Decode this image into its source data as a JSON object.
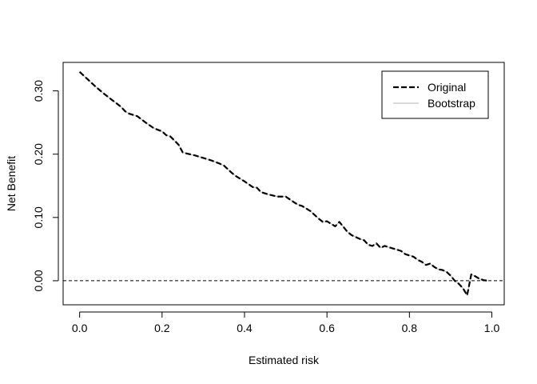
{
  "chart_data": {
    "type": "line",
    "title": "",
    "xlabel": "Estimated risk",
    "ylabel": "Net Benefit",
    "xlim": [
      -0.04,
      1.03
    ],
    "ylim": [
      -0.038,
      0.345
    ],
    "x_ticks": [
      {
        "value": 0.0,
        "label": "0.0"
      },
      {
        "value": 0.2,
        "label": "0.2"
      },
      {
        "value": 0.4,
        "label": "0.4"
      },
      {
        "value": 0.6,
        "label": "0.6"
      },
      {
        "value": 0.8,
        "label": "0.8"
      },
      {
        "value": 1.0,
        "label": "1.0"
      }
    ],
    "y_ticks": [
      {
        "value": 0.0,
        "label": "0.00"
      },
      {
        "value": 0.1,
        "label": "0.10"
      },
      {
        "value": 0.2,
        "label": "0.20"
      },
      {
        "value": 0.3,
        "label": "0.30"
      }
    ],
    "grid": false,
    "legend": {
      "position": "top-right",
      "entries": [
        {
          "label": "Original",
          "style": "dashed",
          "color": "#000000"
        },
        {
          "label": "Bootstrap",
          "style": "solid",
          "color": "#b3b3b3"
        }
      ]
    },
    "reference_line": {
      "y": 0.0,
      "style": "dashed",
      "color": "#000000"
    },
    "series": [
      {
        "name": "Original",
        "color": "#000000",
        "style": "dashed",
        "points": [
          [
            0.0,
            0.33
          ],
          [
            0.02,
            0.318
          ],
          [
            0.04,
            0.306
          ],
          [
            0.06,
            0.295
          ],
          [
            0.08,
            0.285
          ],
          [
            0.1,
            0.275
          ],
          [
            0.11,
            0.268
          ],
          [
            0.12,
            0.264
          ],
          [
            0.14,
            0.26
          ],
          [
            0.16,
            0.25
          ],
          [
            0.18,
            0.241
          ],
          [
            0.2,
            0.236
          ],
          [
            0.21,
            0.23
          ],
          [
            0.22,
            0.228
          ],
          [
            0.24,
            0.215
          ],
          [
            0.25,
            0.203
          ],
          [
            0.26,
            0.201
          ],
          [
            0.28,
            0.198
          ],
          [
            0.3,
            0.194
          ],
          [
            0.32,
            0.19
          ],
          [
            0.34,
            0.185
          ],
          [
            0.35,
            0.182
          ],
          [
            0.36,
            0.176
          ],
          [
            0.37,
            0.17
          ],
          [
            0.38,
            0.165
          ],
          [
            0.4,
            0.157
          ],
          [
            0.42,
            0.148
          ],
          [
            0.43,
            0.147
          ],
          [
            0.44,
            0.14
          ],
          [
            0.46,
            0.136
          ],
          [
            0.48,
            0.133
          ],
          [
            0.5,
            0.133
          ],
          [
            0.52,
            0.124
          ],
          [
            0.53,
            0.12
          ],
          [
            0.54,
            0.118
          ],
          [
            0.56,
            0.11
          ],
          [
            0.57,
            0.104
          ],
          [
            0.58,
            0.098
          ],
          [
            0.59,
            0.093
          ],
          [
            0.6,
            0.094
          ],
          [
            0.61,
            0.09
          ],
          [
            0.62,
            0.086
          ],
          [
            0.63,
            0.093
          ],
          [
            0.64,
            0.085
          ],
          [
            0.65,
            0.077
          ],
          [
            0.66,
            0.072
          ],
          [
            0.68,
            0.066
          ],
          [
            0.69,
            0.064
          ],
          [
            0.7,
            0.057
          ],
          [
            0.71,
            0.055
          ],
          [
            0.72,
            0.059
          ],
          [
            0.73,
            0.052
          ],
          [
            0.74,
            0.055
          ],
          [
            0.75,
            0.053
          ],
          [
            0.76,
            0.051
          ],
          [
            0.78,
            0.047
          ],
          [
            0.79,
            0.042
          ],
          [
            0.8,
            0.04
          ],
          [
            0.81,
            0.038
          ],
          [
            0.82,
            0.033
          ],
          [
            0.83,
            0.03
          ],
          [
            0.84,
            0.025
          ],
          [
            0.85,
            0.027
          ],
          [
            0.86,
            0.022
          ],
          [
            0.87,
            0.018
          ],
          [
            0.88,
            0.017
          ],
          [
            0.89,
            0.014
          ],
          [
            0.9,
            0.008
          ],
          [
            0.91,
            0.0
          ],
          [
            0.92,
            -0.005
          ],
          [
            0.93,
            -0.012
          ],
          [
            0.94,
            -0.023
          ],
          [
            0.95,
            0.01
          ],
          [
            0.96,
            0.007
          ],
          [
            0.97,
            0.003
          ],
          [
            0.98,
            0.001
          ],
          [
            0.99,
            0.0
          ]
        ]
      },
      {
        "name": "Bootstrap",
        "color": "#b3b3b3",
        "style": "solid",
        "points": [
          [
            0.0,
            0.33
          ],
          [
            0.02,
            0.318
          ],
          [
            0.04,
            0.306
          ],
          [
            0.06,
            0.295
          ],
          [
            0.08,
            0.285
          ],
          [
            0.1,
            0.275
          ],
          [
            0.11,
            0.268
          ],
          [
            0.12,
            0.264
          ],
          [
            0.14,
            0.26
          ],
          [
            0.16,
            0.25
          ],
          [
            0.18,
            0.241
          ],
          [
            0.2,
            0.236
          ],
          [
            0.21,
            0.23
          ],
          [
            0.22,
            0.228
          ],
          [
            0.24,
            0.215
          ],
          [
            0.25,
            0.203
          ],
          [
            0.26,
            0.201
          ],
          [
            0.28,
            0.198
          ],
          [
            0.3,
            0.194
          ],
          [
            0.32,
            0.19
          ],
          [
            0.34,
            0.185
          ],
          [
            0.35,
            0.182
          ],
          [
            0.36,
            0.176
          ],
          [
            0.37,
            0.17
          ],
          [
            0.38,
            0.165
          ],
          [
            0.4,
            0.157
          ],
          [
            0.42,
            0.148
          ],
          [
            0.43,
            0.147
          ],
          [
            0.44,
            0.14
          ],
          [
            0.46,
            0.136
          ],
          [
            0.48,
            0.133
          ],
          [
            0.5,
            0.133
          ],
          [
            0.52,
            0.124
          ],
          [
            0.53,
            0.12
          ],
          [
            0.54,
            0.118
          ],
          [
            0.56,
            0.11
          ],
          [
            0.57,
            0.104
          ],
          [
            0.58,
            0.098
          ],
          [
            0.59,
            0.093
          ],
          [
            0.6,
            0.094
          ],
          [
            0.61,
            0.09
          ],
          [
            0.62,
            0.086
          ],
          [
            0.63,
            0.093
          ],
          [
            0.64,
            0.085
          ],
          [
            0.65,
            0.077
          ],
          [
            0.66,
            0.072
          ],
          [
            0.68,
            0.066
          ],
          [
            0.69,
            0.064
          ],
          [
            0.7,
            0.057
          ],
          [
            0.71,
            0.055
          ],
          [
            0.72,
            0.059
          ],
          [
            0.73,
            0.052
          ],
          [
            0.74,
            0.055
          ],
          [
            0.75,
            0.053
          ],
          [
            0.76,
            0.051
          ],
          [
            0.78,
            0.047
          ],
          [
            0.79,
            0.042
          ],
          [
            0.8,
            0.04
          ],
          [
            0.81,
            0.038
          ],
          [
            0.82,
            0.033
          ],
          [
            0.83,
            0.03
          ],
          [
            0.84,
            0.025
          ],
          [
            0.85,
            0.027
          ],
          [
            0.86,
            0.022
          ],
          [
            0.87,
            0.018
          ],
          [
            0.88,
            0.017
          ],
          [
            0.89,
            0.014
          ],
          [
            0.9,
            0.008
          ],
          [
            0.91,
            0.0
          ],
          [
            0.92,
            -0.005
          ],
          [
            0.93,
            -0.012
          ],
          [
            0.94,
            -0.023
          ],
          [
            0.95,
            0.01
          ],
          [
            0.96,
            0.007
          ],
          [
            0.97,
            0.003
          ],
          [
            0.98,
            0.001
          ],
          [
            0.99,
            0.0
          ]
        ]
      }
    ]
  }
}
